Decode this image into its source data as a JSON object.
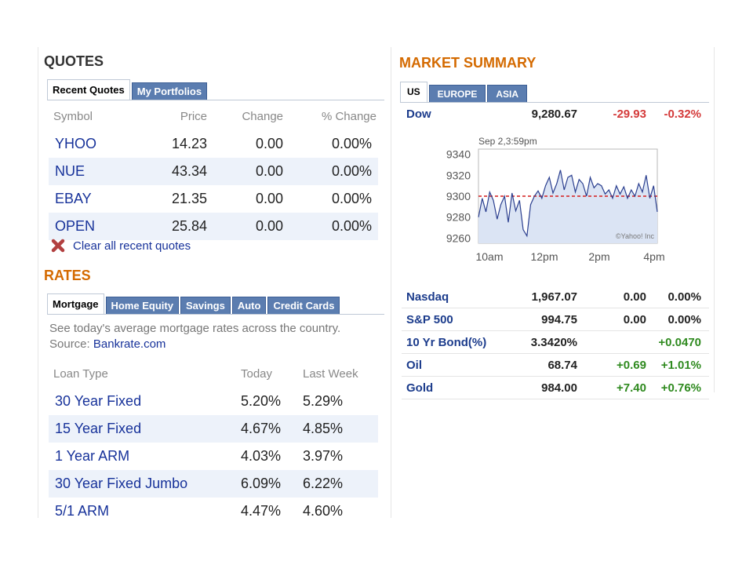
{
  "quotes": {
    "title": "QUOTES",
    "tabs": [
      "Recent Quotes",
      "My Portfolios"
    ],
    "columns": [
      "Symbol",
      "Price",
      "Change",
      "% Change"
    ],
    "rows": [
      {
        "symbol": "YHOO",
        "price": "14.23",
        "change": "0.00",
        "pct": "0.00%"
      },
      {
        "symbol": "NUE",
        "price": "43.34",
        "change": "0.00",
        "pct": "0.00%"
      },
      {
        "symbol": "EBAY",
        "price": "21.35",
        "change": "0.00",
        "pct": "0.00%"
      },
      {
        "symbol": "OPEN",
        "price": "25.84",
        "change": "0.00",
        "pct": "0.00%"
      }
    ],
    "clear_label": "Clear all recent quotes"
  },
  "rates": {
    "title": "RATES",
    "tabs": [
      "Mortgage",
      "Home Equity",
      "Savings",
      "Auto",
      "Credit Cards"
    ],
    "description": "See today's average mortgage rates across the country.",
    "source_prefix": "Source:",
    "source_link": "Bankrate.com",
    "columns": [
      "Loan Type",
      "Today",
      "Last Week"
    ],
    "rows": [
      {
        "type": "30 Year Fixed",
        "today": "5.20%",
        "last": "5.29%"
      },
      {
        "type": "15 Year Fixed",
        "today": "4.67%",
        "last": "4.85%"
      },
      {
        "type": "1 Year ARM",
        "today": "4.03%",
        "last": "3.97%"
      },
      {
        "type": "30 Year Fixed Jumbo",
        "today": "6.09%",
        "last": "6.22%"
      },
      {
        "type": "5/1 ARM",
        "today": "4.47%",
        "last": "4.60%"
      }
    ]
  },
  "market": {
    "title": "MARKET SUMMARY",
    "tabs": [
      "US",
      "EUROPE",
      "ASIA"
    ],
    "dow": {
      "name": "Dow",
      "value": "9,280.67",
      "change": "-29.93",
      "pct": "-0.32%"
    },
    "rows": [
      {
        "name": "Nasdaq",
        "value": "1,967.07",
        "change": "0.00",
        "pct": "0.00%"
      },
      {
        "name": "S&P 500",
        "value": "994.75",
        "change": "0.00",
        "pct": "0.00%"
      },
      {
        "name": "10 Yr Bond(%)",
        "value": "3.3420%",
        "change": "",
        "pct": "+0.0470"
      },
      {
        "name": "Oil",
        "value": "68.74",
        "change": "+0.69",
        "pct": "+1.01%"
      },
      {
        "name": "Gold",
        "value": "984.00",
        "change": "+7.40",
        "pct": "+0.76%"
      }
    ]
  },
  "chart_data": {
    "type": "line",
    "title": "",
    "timestamp": "Sep 2,3:59pm",
    "watermark": "©Yahoo! Inc",
    "x_ticks": [
      "10am",
      "12pm",
      "2pm",
      "4pm"
    ],
    "y_ticks": [
      "9340",
      "9320",
      "9300",
      "9280",
      "9260"
    ],
    "ylim": [
      9255,
      9345
    ],
    "previous_close": 9300,
    "series": [
      {
        "values": [
          9280,
          9298,
          9285,
          9304,
          9296,
          9278,
          9292,
          9300,
          9275,
          9303,
          9286,
          9296,
          9268,
          9262,
          9292,
          9300,
          9305,
          9298,
          9310,
          9318,
          9303,
          9312,
          9325,
          9306,
          9318,
          9320,
          9304,
          9316,
          9312,
          9300,
          9318,
          9308,
          9312,
          9310,
          9302,
          9306,
          9298,
          9310,
          9302,
          9309,
          9298,
          9306,
          9300,
          9312,
          9304,
          9320,
          9298,
          9310,
          9285
        ]
      }
    ],
    "colors": {
      "line": "#2b3f8f",
      "fill": "#dbe4f4",
      "prev_close": "#d41d1d"
    }
  }
}
